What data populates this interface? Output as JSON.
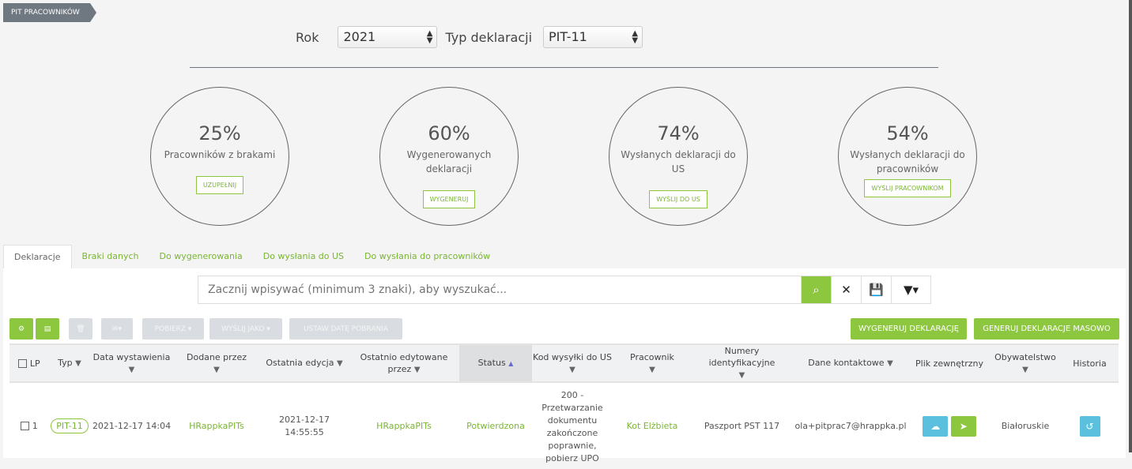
{
  "breadcrumb": "PIT PRACOWNIKÓW",
  "filters": {
    "year_label": "Rok",
    "year_value": "2021",
    "type_label": "Typ deklaracji",
    "type_value": "PIT-11"
  },
  "stats": [
    {
      "percent": "25%",
      "label": "Pracowników z brakami",
      "button": "UZUPEŁNIJ"
    },
    {
      "percent": "60%",
      "label": "Wygenerowanych deklaracji",
      "button": "WYGENERUJ"
    },
    {
      "percent": "74%",
      "label": "Wysłanych deklaracji do US",
      "button": "WYŚLIJ DO US"
    },
    {
      "percent": "54%",
      "label": "Wysłanych deklaracji do pracowników",
      "button": "WYŚLIJ PRACOWNIKOM"
    }
  ],
  "tabs": [
    "Deklaracje",
    "Braki danych",
    "Do wygenerowania",
    "Do wysłania do US",
    "Do wysłania do pracowników"
  ],
  "search": {
    "placeholder": "Zacznij wpisywać (minimum 3 znaki), aby wyszukać..."
  },
  "toolbar": {
    "download": "POBIERZ ▾",
    "send_as": "WYŚLIJ JAKO ▾",
    "set_date": "USTAW DATĘ POBRANIA",
    "generate": "WYGENERUJ DEKLARACJĘ",
    "generate_bulk": "GENERUJ DEKLARACJE MASOWO"
  },
  "table": {
    "headers": [
      "LP",
      "Typ",
      "Data wystawienia",
      "Dodane przez",
      "Ostatnia edycja",
      "Ostatnio edytowane przez",
      "Status",
      "Kod wysyłki do US",
      "Pracownik",
      "Numery identyfikacyjne",
      "Dane kontaktowe",
      "Plik zewnętrzny",
      "Obywatelstwo",
      "Historia"
    ],
    "rows": [
      {
        "lp": "1",
        "typ": "PIT-11",
        "data": "2021-12-17 14:04",
        "dodane": "HRappkaPITs",
        "edycja": "2021-12-17 14:55:55",
        "edytowane": "HRappkaPITs",
        "status": "Potwierdzona",
        "kod": "200 - Przetwarzanie dokumentu zakończone poprawnie, pobierz UPO",
        "pracownik": "Kot Elżbieta",
        "numery": "Paszport PST 117",
        "kontakt": "ola+pitprac7@hrappka.pl",
        "obywatelstwo": "Białoruskie"
      }
    ]
  },
  "colors": {
    "accent": "#8dc63f",
    "info": "#5bc0de"
  }
}
